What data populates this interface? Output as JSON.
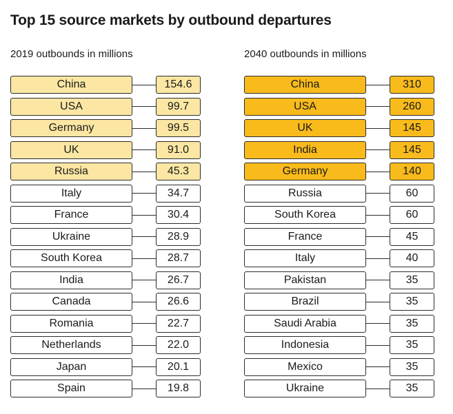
{
  "colors": {
    "top5_2019": "#fbe7a3",
    "top5_2040": "#f9bb1b",
    "border": "#2b2b2b"
  },
  "chart_data": {
    "type": "table",
    "title": "Top 15 source markets by outbound departures",
    "tables": [
      {
        "subtitle": "2019 outbounds in millions",
        "highlight_top": 5,
        "rows": [
          {
            "market": "China",
            "value": "154.6"
          },
          {
            "market": "USA",
            "value": "99.7"
          },
          {
            "market": "Germany",
            "value": "99.5"
          },
          {
            "market": "UK",
            "value": "91.0"
          },
          {
            "market": "Russia",
            "value": "45.3"
          },
          {
            "market": "Italy",
            "value": "34.7"
          },
          {
            "market": "France",
            "value": "30.4"
          },
          {
            "market": "Ukraine",
            "value": "28.9"
          },
          {
            "market": "South Korea",
            "value": "28.7"
          },
          {
            "market": "India",
            "value": "26.7"
          },
          {
            "market": "Canada",
            "value": "26.6"
          },
          {
            "market": "Romania",
            "value": "22.7"
          },
          {
            "market": "Netherlands",
            "value": "22.0"
          },
          {
            "market": "Japan",
            "value": "20.1"
          },
          {
            "market": "Spain",
            "value": "19.8"
          }
        ]
      },
      {
        "subtitle": "2040 outbounds in millions",
        "highlight_top": 5,
        "rows": [
          {
            "market": "China",
            "value": "310"
          },
          {
            "market": "USA",
            "value": "260"
          },
          {
            "market": "UK",
            "value": "145"
          },
          {
            "market": "India",
            "value": "145"
          },
          {
            "market": "Germany",
            "value": "140"
          },
          {
            "market": "Russia",
            "value": "60"
          },
          {
            "market": "South Korea",
            "value": "60"
          },
          {
            "market": "France",
            "value": "45"
          },
          {
            "market": "Italy",
            "value": "40"
          },
          {
            "market": "Pakistan",
            "value": "35"
          },
          {
            "market": "Brazil",
            "value": "35"
          },
          {
            "market": "Saudi Arabia",
            "value": "35"
          },
          {
            "market": "Indonesia",
            "value": "35"
          },
          {
            "market": "Mexico",
            "value": "35"
          },
          {
            "market": "Ukraine",
            "value": "35"
          }
        ]
      }
    ]
  }
}
